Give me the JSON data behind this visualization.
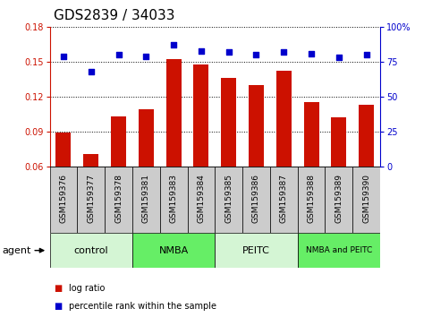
{
  "title": "GDS2839 / 34033",
  "samples": [
    "GSM159376",
    "GSM159377",
    "GSM159378",
    "GSM159381",
    "GSM159383",
    "GSM159384",
    "GSM159385",
    "GSM159386",
    "GSM159387",
    "GSM159388",
    "GSM159389",
    "GSM159390"
  ],
  "log_ratio": [
    0.089,
    0.071,
    0.103,
    0.109,
    0.152,
    0.148,
    0.136,
    0.13,
    0.142,
    0.115,
    0.102,
    0.113
  ],
  "percentile_rank": [
    79,
    68,
    80,
    79,
    87,
    83,
    82,
    80,
    82,
    81,
    78,
    80
  ],
  "ylim_left": [
    0.06,
    0.18
  ],
  "ylim_right": [
    0,
    100
  ],
  "yticks_left": [
    0.06,
    0.09,
    0.12,
    0.15,
    0.18
  ],
  "yticks_right": [
    0,
    25,
    50,
    75,
    100
  ],
  "bar_color": "#cc1100",
  "scatter_color": "#0000cc",
  "groups": [
    {
      "label": "control",
      "start": 0,
      "end": 3,
      "color": "#d4f5d4"
    },
    {
      "label": "NMBA",
      "start": 3,
      "end": 6,
      "color": "#66ee66"
    },
    {
      "label": "PEITC",
      "start": 6,
      "end": 9,
      "color": "#d4f5d4"
    },
    {
      "label": "NMBA and PEITC",
      "start": 9,
      "end": 12,
      "color": "#66ee66"
    }
  ],
  "sample_box_color": "#cccccc",
  "agent_label": "agent",
  "legend_items": [
    {
      "label": "log ratio",
      "color": "#cc1100"
    },
    {
      "label": "percentile rank within the sample",
      "color": "#0000cc"
    }
  ],
  "title_fontsize": 11,
  "tick_fontsize": 7,
  "group_fontsize": 8,
  "sample_fontsize": 6.5
}
